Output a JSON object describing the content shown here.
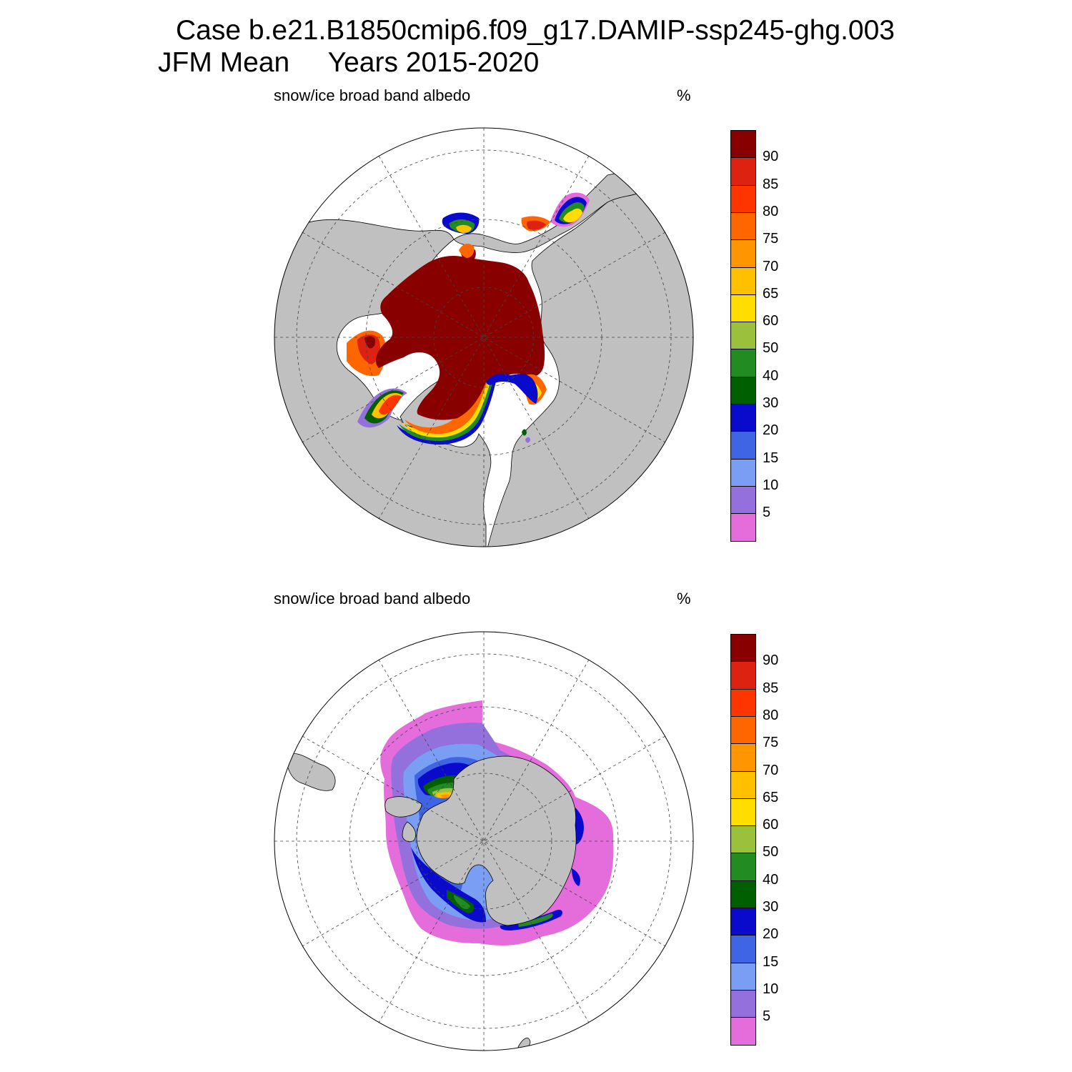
{
  "title": {
    "line1": "Case b.e21.B1850cmip6.f09_g17.DAMIP-ssp245-ghg.003",
    "line2": "JFM Mean     Years 2015-2020"
  },
  "panels": [
    {
      "id": "north",
      "variable_label": "snow/ice broad band albedo",
      "units_label": "%",
      "hemisphere": "north"
    },
    {
      "id": "south",
      "variable_label": "snow/ice broad band albedo",
      "units_label": "%",
      "hemisphere": "south"
    }
  ],
  "colorbar": {
    "levels": [
      "5",
      "10",
      "15",
      "20",
      "30",
      "40",
      "50",
      "60",
      "65",
      "70",
      "75",
      "80",
      "85",
      "90"
    ],
    "colors": [
      "#e46ddb",
      "#9470dc",
      "#7a9ef3",
      "#3f64e4",
      "#0a0acc",
      "#005f00",
      "#228b22",
      "#9bc03b",
      "#ffdd00",
      "#ffc000",
      "#ff9500",
      "#ff6600",
      "#ff3500",
      "#dd2211",
      "#880000"
    ]
  },
  "map_colors": {
    "land": "#c0c0c0",
    "ocean": "#ffffff"
  }
}
